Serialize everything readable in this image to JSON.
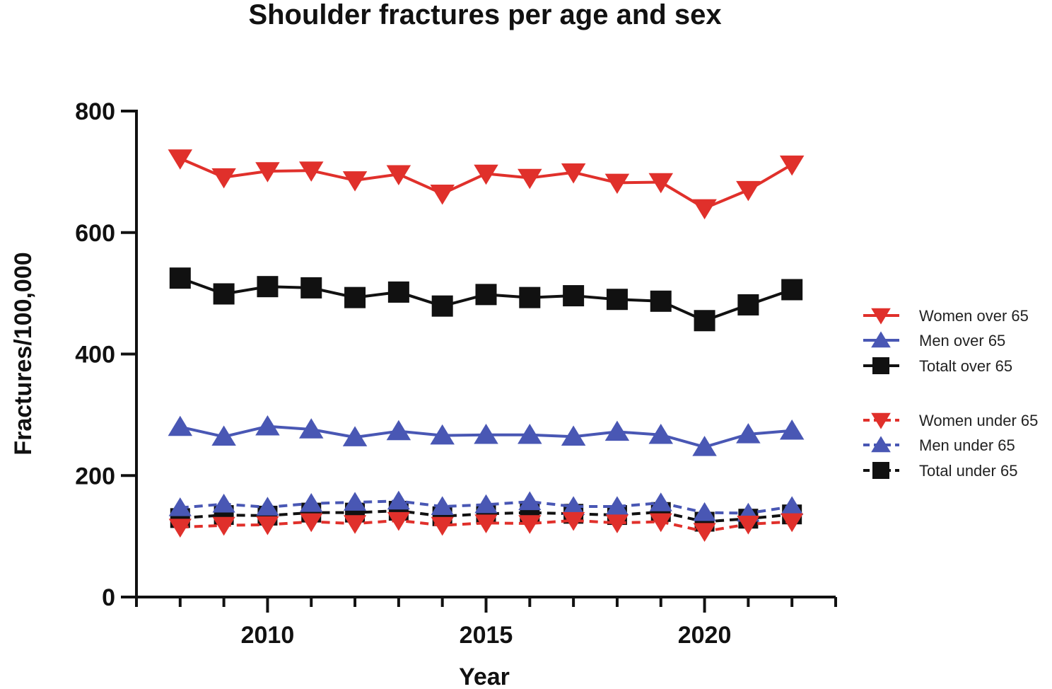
{
  "chart_data": {
    "type": "line",
    "title": "Shoulder fractures per age and sex",
    "xlabel": "Year",
    "ylabel": "Fractures/100,000",
    "x": [
      2008,
      2009,
      2010,
      2011,
      2012,
      2013,
      2014,
      2015,
      2016,
      2017,
      2018,
      2019,
      2020,
      2021,
      2022
    ],
    "xlim": [
      2007,
      2023
    ],
    "ylim": [
      0,
      800
    ],
    "xticks": [
      2010,
      2015,
      2020
    ],
    "yticks": [
      0,
      200,
      400,
      600,
      800
    ],
    "grid": false,
    "legend_position": "right",
    "series": [
      {
        "name": "Women over 65",
        "color": "#e0302b",
        "marker": "triangle-down",
        "dash": false,
        "values": [
          722,
          691,
          701,
          702,
          686,
          696,
          664,
          697,
          690,
          699,
          682,
          683,
          640,
          670,
          712
        ]
      },
      {
        "name": "Men over 65",
        "color": "#4957b4",
        "marker": "triangle-up",
        "dash": false,
        "values": [
          280,
          264,
          281,
          276,
          263,
          273,
          266,
          267,
          267,
          264,
          272,
          267,
          247,
          268,
          274
        ]
      },
      {
        "name": "Totalt over 65",
        "color": "#111111",
        "marker": "square",
        "dash": false,
        "values": [
          525,
          499,
          511,
          509,
          493,
          502,
          479,
          498,
          493,
          496,
          490,
          487,
          455,
          481,
          506
        ]
      },
      {
        "name": "Women under 65",
        "color": "#e0302b",
        "marker": "triangle-down",
        "dash": true,
        "values": [
          115,
          118,
          119,
          124,
          121,
          126,
          118,
          122,
          121,
          126,
          122,
          124,
          108,
          120,
          124
        ]
      },
      {
        "name": "Men under 65",
        "color": "#4957b4",
        "marker": "triangle-up",
        "dash": true,
        "values": [
          147,
          153,
          148,
          154,
          156,
          158,
          149,
          152,
          157,
          149,
          149,
          155,
          139,
          138,
          149
        ]
      },
      {
        "name": "Total under 65",
        "color": "#111111",
        "marker": "square",
        "dash": true,
        "values": [
          130,
          135,
          134,
          139,
          139,
          142,
          133,
          137,
          139,
          137,
          135,
          140,
          124,
          129,
          136
        ]
      }
    ]
  }
}
